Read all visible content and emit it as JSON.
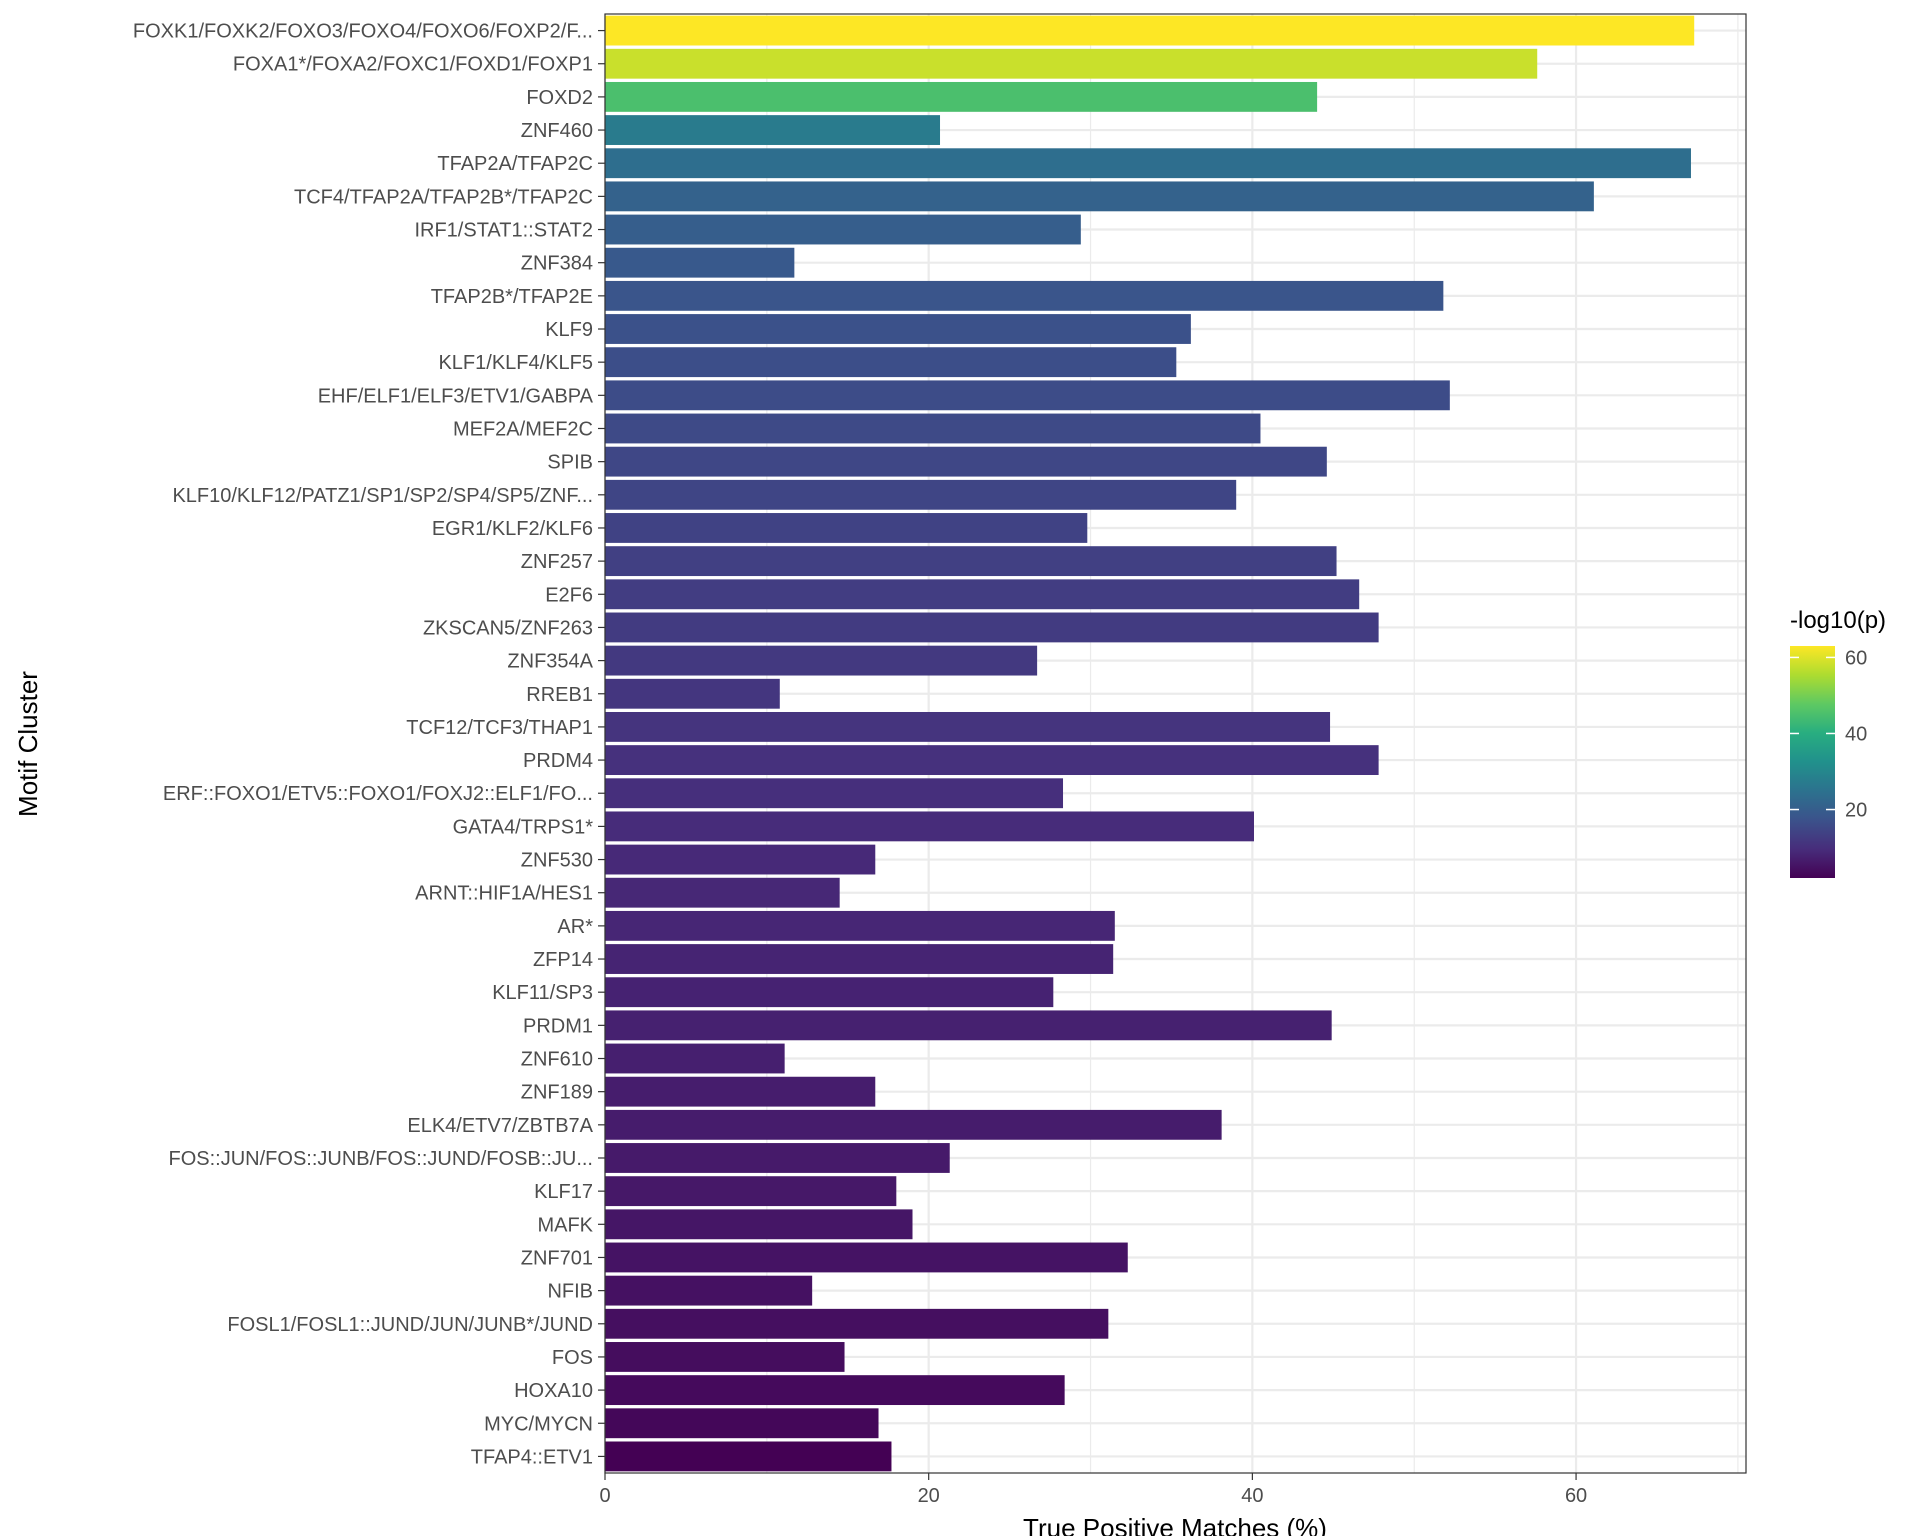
{
  "chart_data": {
    "type": "bar",
    "orientation": "horizontal",
    "title": "",
    "xlabel": "True Positive Matches (%)",
    "ylabel": "Motif Cluster",
    "xlim": [
      0,
      70.5
    ],
    "xticks": [
      0,
      20,
      40,
      60
    ],
    "grid": true,
    "legend": {
      "title": "-log10(p)",
      "placement": "right",
      "type": "colorbar",
      "range": [
        2,
        63
      ],
      "ticks": [
        20,
        40,
        60
      ],
      "colormap": "viridis"
    },
    "categories": [
      "FOXK1/FOXK2/FOXO3/FOXO4/FOXO6/FOXP2/F...",
      "FOXA1*/FOXA2/FOXC1/FOXD1/FOXP1",
      "FOXD2",
      "ZNF460",
      "TFAP2A/TFAP2C",
      "TCF4/TFAP2A/TFAP2B*/TFAP2C",
      "IRF1/STAT1::STAT2",
      "ZNF384",
      "TFAP2B*/TFAP2E",
      "KLF9",
      "KLF1/KLF4/KLF5",
      "EHF/ELF1/ELF3/ETV1/GABPA",
      "MEF2A/MEF2C",
      "SPIB",
      "KLF10/KLF12/PATZ1/SP1/SP2/SP4/SP5/ZNF...",
      "EGR1/KLF2/KLF6",
      "ZNF257",
      "E2F6",
      "ZKSCAN5/ZNF263",
      "ZNF354A",
      "RREB1",
      "TCF12/TCF3/THAP1",
      "PRDM4",
      "ERF::FOXO1/ETV5::FOXO1/FOXJ2::ELF1/FO...",
      "GATA4/TRPS1*",
      "ZNF530",
      "ARNT::HIF1A/HES1",
      "AR*",
      "ZFP14",
      "KLF11/SP3",
      "PRDM1",
      "ZNF610",
      "ZNF189",
      "ELK4/ETV7/ZBTB7A",
      "FOS::JUN/FOS::JUNB/FOS::JUND/FOSB::JU...",
      "KLF17",
      "MAFK",
      "ZNF701",
      "NFIB",
      "FOSL1/FOSL1::JUND/JUN/JUNB*/JUND",
      "FOS",
      "HOXA10",
      "MYC/MYCN",
      "TFAP4::ETV1"
    ],
    "values": [
      67.3,
      57.6,
      44.0,
      20.7,
      67.1,
      61.1,
      29.4,
      11.7,
      51.8,
      36.2,
      35.3,
      52.2,
      40.5,
      44.6,
      39.0,
      29.8,
      45.2,
      46.6,
      47.8,
      26.7,
      10.8,
      44.8,
      47.8,
      28.3,
      40.1,
      16.7,
      14.5,
      31.5,
      31.4,
      27.7,
      44.9,
      11.1,
      16.7,
      38.1,
      21.3,
      18.0,
      19.0,
      32.3,
      12.8,
      31.1,
      14.8,
      28.4,
      16.9,
      17.7
    ],
    "color_values": [
      63,
      58,
      45,
      27,
      24,
      21,
      20,
      19,
      18,
      17,
      16.5,
      16,
      15.5,
      15,
      14.5,
      14,
      13.5,
      13,
      12.5,
      12,
      11.5,
      11,
      10.5,
      10,
      9.5,
      9,
      8.7,
      8.4,
      8.1,
      7.8,
      7.5,
      7.2,
      6.9,
      6.6,
      6.3,
      6.0,
      5.6,
      5.2,
      4.8,
      4.4,
      4.0,
      3.5,
      3.0,
      2.0
    ]
  }
}
